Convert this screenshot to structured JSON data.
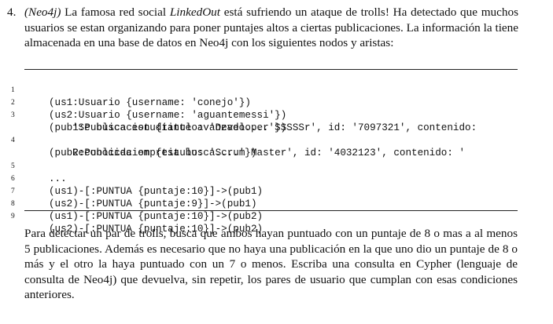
{
  "problem": {
    "number": "4.",
    "intro_parts": {
      "tag": "(Neo4j)",
      "before_name": " La famosa red social ",
      "name": "LinkedOut",
      "after_name": " está sufriendo un ataque de trolls! Ha detectado que muchos usuarios se estan organizando para poner puntajes altos a ciertas publicaciones. La información la tiene almacenada en una base de datos en Neo4j con los siguientes nodos y aristas:"
    },
    "code_lines": [
      {
        "n": "1",
        "text": "(us1:Usuario {username: 'conejo'})"
      },
      {
        "n": "2",
        "text": "(us2:Usuario {username: 'aguantemessi'})"
      },
      {
        "n": "3",
        "text": "(pub1:Publicacion {titulo: 'Developer SSSSSr', id: '7097321', contenido:",
        "cont": "'Se busca estudiante avanzado....'})"
      },
      {
        "n": "4",
        "text": "(pub2:Publicacion {titulo: 'Scrum Master', id: '4032123', contenido: '",
        "cont": "Reconocida empresa busca....'})"
      },
      {
        "n": "5",
        "text": "..."
      },
      {
        "n": "6",
        "text": "(us1)-[:PUNTUA {puntaje:10}]->(pub1)"
      },
      {
        "n": "7",
        "text": "(us2)-[:PUNTUA {puntaje:9}]->(pub1)"
      },
      {
        "n": "8",
        "text": "(us1)-[:PUNTUA {puntaje:10}]->(pub2)"
      },
      {
        "n": "9",
        "text": "(us2)-[:PUNTUA {puntaje:10}]->(pub2)"
      }
    ],
    "outro": "Para detectar un par de trolls, busca que ambos hayan puntuado con un puntaje de 8 o mas a al menos 5 publicaciones. Además es necesario que no haya una publicación en la que uno dio un puntaje de 8 o más y el otro la haya puntuado con un 7 o menos. Escriba una consulta en Cypher (lenguaje de consulta de Neo4j) que devuelva, sin repetir, los pares de usuario que cumplan con esas condiciones anteriores."
  }
}
